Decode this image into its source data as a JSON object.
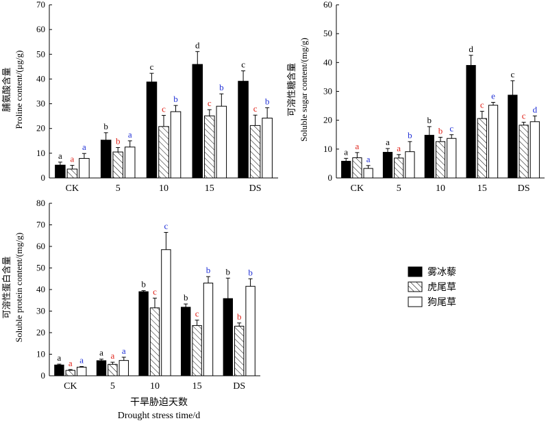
{
  "legend": {
    "items": [
      {
        "label": "雾冰藜",
        "color": "#000000",
        "pattern": "solid"
      },
      {
        "label": "虎尾草",
        "color": "#000000",
        "pattern": "hatch"
      },
      {
        "label": "狗尾草",
        "color": "#000000",
        "pattern": "empty"
      }
    ]
  },
  "x_title": {
    "zh": "干旱胁迫天数",
    "en": "Drought stress time/d"
  },
  "colors": {
    "letter_species1": "#000000",
    "letter_species2": "#e0241b",
    "letter_species3": "#1f2fd6"
  },
  "chart_data": [
    {
      "type": "bar",
      "categories": [
        "CK",
        "5",
        "10",
        "15",
        "DS"
      ],
      "ylabel_zh": "脯氨酸含量",
      "ylabel_en": "Proline content/(μg/g)",
      "ylim": [
        0,
        70
      ],
      "yticks": [
        0,
        10,
        20,
        30,
        40,
        50,
        60,
        70
      ],
      "series": [
        {
          "name": "雾冰藜",
          "values": [
            5.2,
            15.3,
            38.8,
            45.9,
            39.1
          ],
          "errors": [
            1.2,
            3.0,
            3.5,
            5.2,
            4.2
          ],
          "letters": [
            "a",
            "b",
            "c",
            "d",
            "c"
          ]
        },
        {
          "name": "虎尾草",
          "values": [
            3.6,
            10.5,
            20.8,
            25.1,
            21.2
          ],
          "errors": [
            1.5,
            1.8,
            4.5,
            2.5,
            4.2
          ],
          "letters": [
            "a",
            "b",
            "c",
            "c",
            "c"
          ]
        },
        {
          "name": "狗尾草",
          "values": [
            7.9,
            12.5,
            26.8,
            29.0,
            24.2
          ],
          "errors": [
            2.0,
            2.5,
            2.5,
            5.0,
            4.2
          ],
          "letters": [
            "a",
            "a",
            "b",
            "b",
            "b"
          ]
        }
      ]
    },
    {
      "type": "bar",
      "categories": [
        "CK",
        "5",
        "10",
        "15",
        "DS"
      ],
      "ylabel_zh": "可溶性糖含量",
      "ylabel_en": "Soluble sugar content/(mg/g)",
      "ylim": [
        0,
        60
      ],
      "yticks": [
        0,
        10,
        20,
        30,
        40,
        50,
        60
      ],
      "series": [
        {
          "name": "雾冰藜",
          "values": [
            5.8,
            8.9,
            14.8,
            39.0,
            28.7
          ],
          "errors": [
            1.0,
            1.3,
            3.0,
            3.5,
            5.0
          ],
          "letters": [
            "a",
            "a",
            "b",
            "d",
            "c"
          ]
        },
        {
          "name": "虎尾草",
          "values": [
            7.0,
            6.9,
            12.6,
            20.6,
            18.3
          ],
          "errors": [
            1.8,
            1.2,
            1.5,
            2.5,
            1.0
          ],
          "letters": [
            "a",
            "a",
            "b",
            "c",
            "c"
          ]
        },
        {
          "name": "狗尾草",
          "values": [
            3.3,
            9.1,
            13.7,
            25.2,
            19.5
          ],
          "errors": [
            1.0,
            3.5,
            1.3,
            1.0,
            2.0
          ],
          "letters": [
            "a",
            "b",
            "c",
            "e",
            "d"
          ]
        }
      ]
    },
    {
      "type": "bar",
      "categories": [
        "CK",
        "5",
        "10",
        "15",
        "DS"
      ],
      "ylabel_zh": "可溶性蛋白含量",
      "ylabel_en": "Soluble protein content/(mg/g)",
      "ylim": [
        0,
        80
      ],
      "yticks": [
        0,
        10,
        20,
        30,
        40,
        50,
        60,
        70,
        80
      ],
      "series": [
        {
          "name": "雾冰藜",
          "values": [
            5.0,
            7.0,
            39.0,
            31.8,
            35.8
          ],
          "errors": [
            0.4,
            0.7,
            0.5,
            1.5,
            9.5
          ],
          "letters": [
            "a",
            "a",
            "b",
            "b",
            "b"
          ]
        },
        {
          "name": "虎尾草",
          "values": [
            2.5,
            5.3,
            31.5,
            23.3,
            23.0
          ],
          "errors": [
            0.4,
            1.0,
            4.5,
            2.5,
            1.5
          ],
          "letters": [
            "a",
            "a",
            "c",
            "c",
            "b"
          ]
        },
        {
          "name": "狗尾草",
          "values": [
            4.0,
            7.1,
            58.5,
            43.0,
            41.5
          ],
          "errors": [
            0.3,
            1.5,
            8.0,
            3.0,
            3.5
          ],
          "letters": [
            "a",
            "a",
            "c",
            "b",
            "b"
          ]
        }
      ]
    }
  ]
}
